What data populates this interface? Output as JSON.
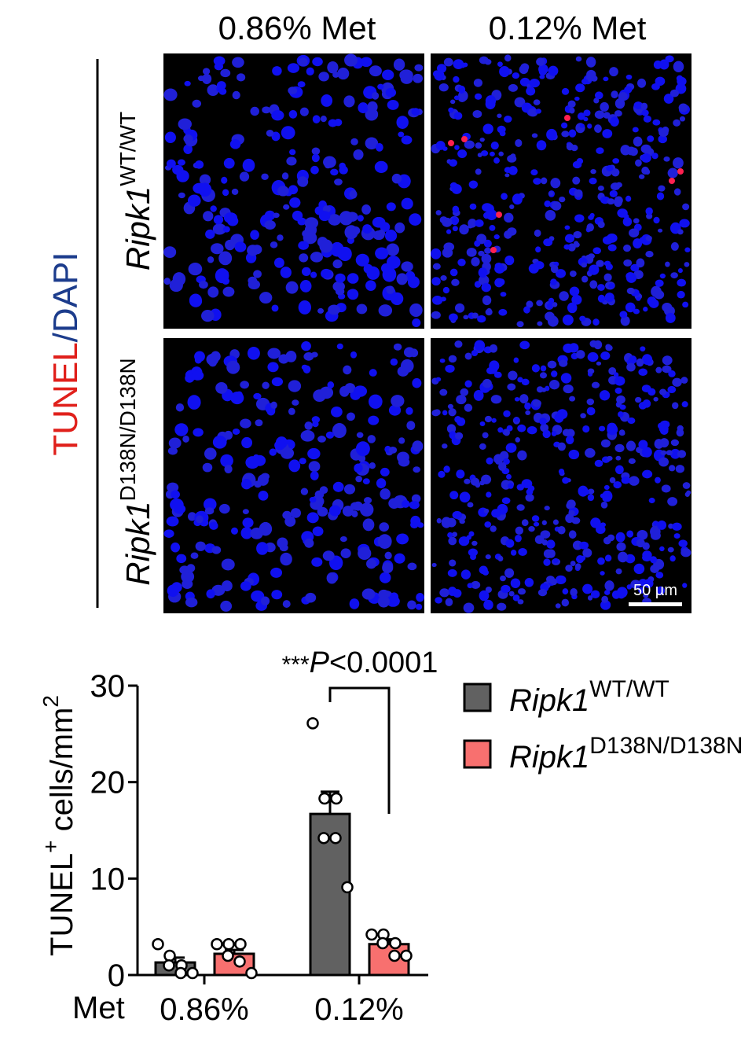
{
  "figure": {
    "columns": [
      "0.86% Met",
      "0.12% Met"
    ],
    "rows": [
      {
        "gene": "Ripk1",
        "allele": "WT/WT"
      },
      {
        "gene": "Ripk1",
        "allele": "D138N/D138N"
      }
    ],
    "stain": [
      "TUNEL",
      "/DAPI"
    ],
    "scale_bar": "50 µm"
  },
  "chart_data": {
    "type": "bar",
    "x_label": "Met",
    "y_label": {
      "text": "TUNEL",
      "sup": "+",
      "text2": " cells/mm",
      "sup2": "2"
    },
    "categories": [
      "0.86%",
      "0.12%"
    ],
    "series": [
      {
        "name": "Ripk1",
        "name_sup": "WT/WT",
        "color": "#616161",
        "values": [
          1.3,
          16.7
        ],
        "errors": [
          0.5,
          2.3
        ],
        "points": [
          [
            3.2,
            2.0,
            1.0,
            1.0,
            0.2,
            0.2
          ],
          [
            26.1,
            18.3,
            18.3,
            14.2,
            14.2,
            9.1
          ]
        ]
      },
      {
        "name": "Ripk1",
        "name_sup": "D138N/D138N",
        "color": "#f8706f",
        "values": [
          2.2,
          3.2
        ],
        "errors": [
          0.4,
          0.5
        ],
        "points": [
          [
            3.2,
            3.2,
            3.2,
            2.0,
            1.4,
            0.2
          ],
          [
            4.2,
            4.2,
            3.3,
            3.3,
            2.0,
            2.0
          ]
        ]
      }
    ],
    "ylim": [
      0,
      30
    ],
    "yticks": [
      0,
      10,
      20,
      30
    ],
    "annotation": {
      "stars": "***",
      "p": "P",
      "value": "<0.0001"
    }
  }
}
